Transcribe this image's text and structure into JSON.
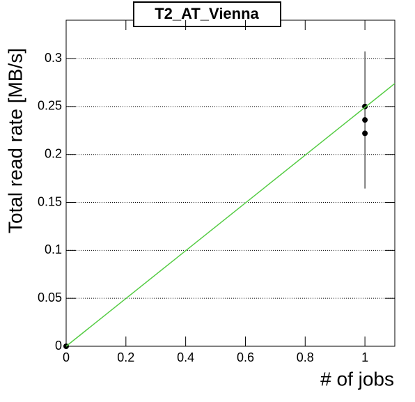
{
  "chart_data": {
    "type": "scatter",
    "title": "T2_AT_Vienna",
    "x_label": "# of jobs",
    "y_label": "Total read rate [MB/s]",
    "xlim": [
      0,
      1.1
    ],
    "ylim": [
      0,
      0.34
    ],
    "xticks": [
      0,
      0.2,
      0.4,
      0.6,
      0.8,
      1
    ],
    "yticks": [
      0,
      0.05,
      0.1,
      0.15,
      0.2,
      0.25,
      0.3
    ],
    "grid": "y",
    "series": [
      {
        "color": "#000000",
        "x": [
          0,
          1,
          1,
          1
        ],
        "values": [
          0,
          0.25,
          0.236,
          0.222
        ],
        "errors": [
          null,
          null,
          0.0715,
          null
        ]
      },
      {
        "color": "#55cc44",
        "line": true,
        "x": [
          0,
          1.1
        ],
        "values": [
          0,
          0.274
        ]
      }
    ]
  }
}
